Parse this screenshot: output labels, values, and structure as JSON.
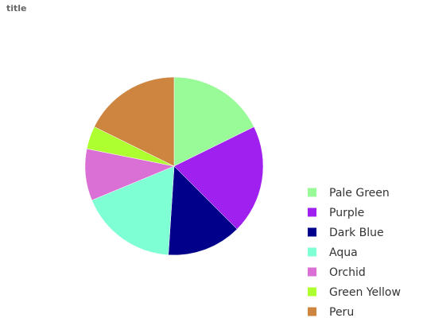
{
  "chart_data": {
    "type": "pie",
    "title": "title",
    "categories": [
      "Pale Green",
      "Purple",
      "Dark Blue",
      "Aqua",
      "Orchid",
      "Green Yellow",
      "Peru"
    ],
    "values": [
      17,
      19,
      13,
      17,
      9,
      4,
      17
    ],
    "colors": [
      "#98fb98",
      "#a020f0",
      "#00008b",
      "#7fffd4",
      "#da70d6",
      "#adff2f",
      "#cd853f"
    ],
    "start_angle_deg": 0,
    "direction": "clockwise",
    "legend_position": "right"
  }
}
